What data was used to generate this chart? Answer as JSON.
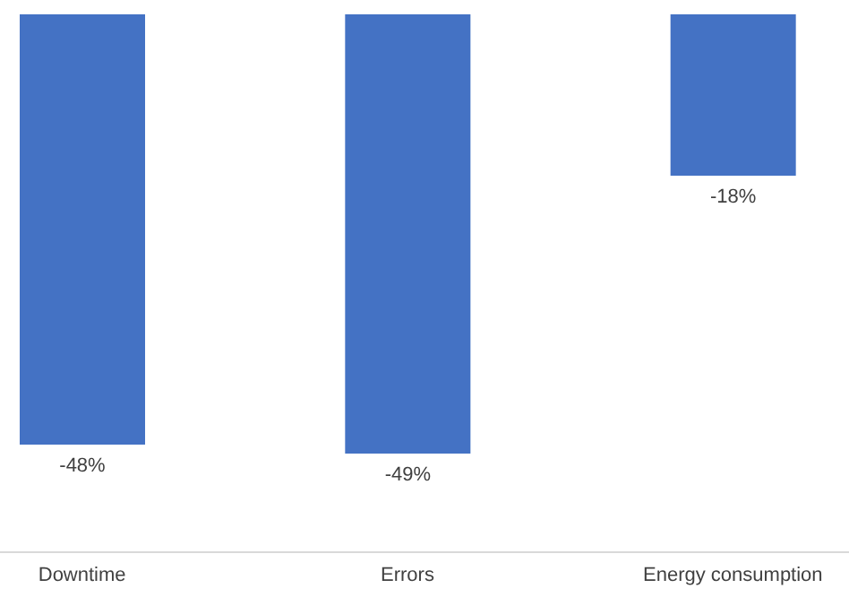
{
  "chart_data": {
    "type": "bar",
    "categories": [
      "Downtime",
      "Errors",
      "Energy consumption"
    ],
    "values": [
      -48,
      -49,
      -18
    ],
    "color": "#4472c4",
    "value_labels": [
      "-48%",
      "-49%",
      "-18%"
    ],
    "ylim": [
      -60,
      0
    ],
    "tick_labels": "x"
  }
}
